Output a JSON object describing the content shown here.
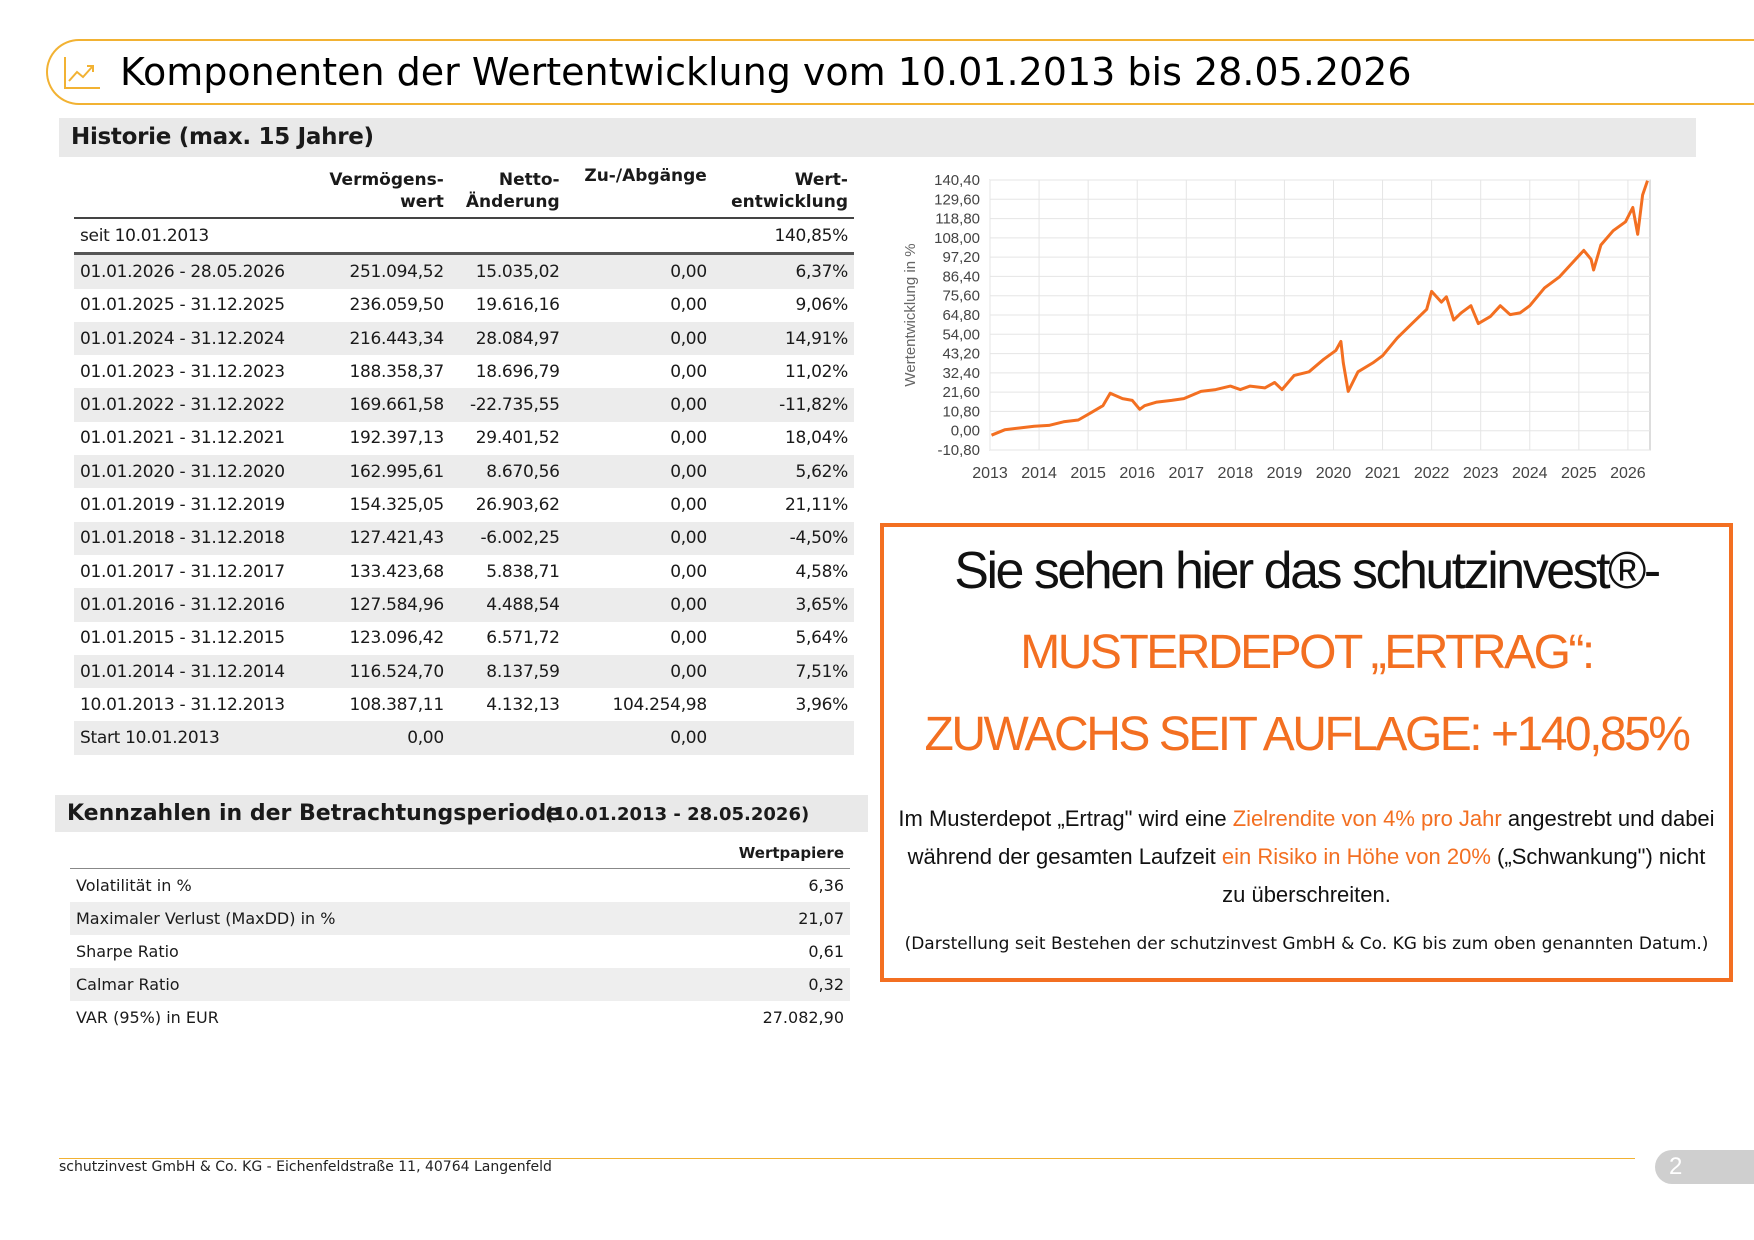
{
  "header": {
    "title": "Komponenten der Wertentwicklung vom 10.01.2013 bis 28.05.2026",
    "icon": "line-chart-icon",
    "accent": "#f2b233"
  },
  "history": {
    "title": "Historie (max. 15 Jahre)",
    "columns": [
      {
        "l1": "",
        "l2": ""
      },
      {
        "l1": "Vermögens-",
        "l2": "wert"
      },
      {
        "l1": "Netto-",
        "l2": "Änderung"
      },
      {
        "l1": "Zu-/Abgänge",
        "l2": ""
      },
      {
        "l1": "Wert-",
        "l2": "entwicklung"
      }
    ],
    "since": {
      "label": "seit 10.01.2013",
      "value": "140,85%"
    },
    "rows": [
      [
        "01.01.2026 - 28.05.2026",
        "251.094,52",
        "15.035,02",
        "0,00",
        "6,37%"
      ],
      [
        "01.01.2025 - 31.12.2025",
        "236.059,50",
        "19.616,16",
        "0,00",
        "9,06%"
      ],
      [
        "01.01.2024 - 31.12.2024",
        "216.443,34",
        "28.084,97",
        "0,00",
        "14,91%"
      ],
      [
        "01.01.2023 - 31.12.2023",
        "188.358,37",
        "18.696,79",
        "0,00",
        "11,02%"
      ],
      [
        "01.01.2022 - 31.12.2022",
        "169.661,58",
        "-22.735,55",
        "0,00",
        "-11,82%"
      ],
      [
        "01.01.2021 - 31.12.2021",
        "192.397,13",
        "29.401,52",
        "0,00",
        "18,04%"
      ],
      [
        "01.01.2020 - 31.12.2020",
        "162.995,61",
        "8.670,56",
        "0,00",
        "5,62%"
      ],
      [
        "01.01.2019 - 31.12.2019",
        "154.325,05",
        "26.903,62",
        "0,00",
        "21,11%"
      ],
      [
        "01.01.2018 - 31.12.2018",
        "127.421,43",
        "-6.002,25",
        "0,00",
        "-4,50%"
      ],
      [
        "01.01.2017 - 31.12.2017",
        "133.423,68",
        "5.838,71",
        "0,00",
        "4,58%"
      ],
      [
        "01.01.2016 - 31.12.2016",
        "127.584,96",
        "4.488,54",
        "0,00",
        "3,65%"
      ],
      [
        "01.01.2015 - 31.12.2015",
        "123.096,42",
        "6.571,72",
        "0,00",
        "5,64%"
      ],
      [
        "01.01.2014 - 31.12.2014",
        "116.524,70",
        "8.137,59",
        "0,00",
        "7,51%"
      ],
      [
        "10.01.2013 - 31.12.2013",
        "108.387,11",
        "4.132,13",
        "104.254,98",
        "3,96%"
      ],
      [
        "Start 10.01.2013",
        "0,00",
        "",
        "0,00",
        ""
      ]
    ]
  },
  "kennzahlen": {
    "title": "Kennzahlen in der Betrachtungsperiode",
    "period": "(10.01.2013 - 28.05.2026)",
    "column": "Wertpapiere",
    "rows": [
      [
        "Volatilität in %",
        "6,36"
      ],
      [
        "Maximaler Verlust (MaxDD) in %",
        "21,07"
      ],
      [
        "Sharpe Ratio",
        "0,61"
      ],
      [
        "Calmar Ratio",
        "0,32"
      ],
      [
        "VAR (95%) in EUR",
        "27.082,90"
      ]
    ]
  },
  "promo": {
    "line1": "Sie sehen hier das schutzinvest®-",
    "line2": "MUSTERDEPOT „ERTRAG“:",
    "line3": "ZUWACHS SEIT AUFLAGE: +140,85%",
    "b1": "Im Musterdepot „Ertrag\" wird eine ",
    "b2": "Zielrendite von 4% pro Jahr",
    "b3": " angestrebt und dabei während der gesamten Laufzeit ",
    "b4": "ein Risiko in Höhe von 20%",
    "b5": " („Schwankung\") nicht zu überschreiten.",
    "note": "(Darstellung seit Bestehen der schutzinvest GmbH & Co. KG bis zum oben genannten Datum.)",
    "accent": "#f36f21"
  },
  "footer": {
    "address": "schutzinvest GmbH & Co. KG - Eichenfeldstraße 11, 40764 Langenfeld",
    "page": "2"
  },
  "chart_data": {
    "type": "line",
    "title": "",
    "xlabel": "",
    "ylabel": "Wertentwicklung in %",
    "ylim": [
      -10.8,
      140.4
    ],
    "xlim": [
      2013,
      2026.45
    ],
    "x_ticks": [
      "2013",
      "2014",
      "2015",
      "2016",
      "2017",
      "2018",
      "2019",
      "2020",
      "2021",
      "2022",
      "2023",
      "2024",
      "2025",
      "2026"
    ],
    "y_ticks": [
      "140,40",
      "129,60",
      "118,80",
      "108,00",
      "97,20",
      "86,40",
      "75,60",
      "64,80",
      "54,00",
      "43,20",
      "32,40",
      "21,60",
      "10,80",
      "0,00",
      "-10,80"
    ],
    "grid": true,
    "color": "#f36f21",
    "series": [
      {
        "x": [
          2013.03,
          2013.3,
          2013.6,
          2013.9,
          2014.2,
          2014.5,
          2014.8,
          2015.05,
          2015.3,
          2015.45,
          2015.7,
          2015.9,
          2016.05,
          2016.15,
          2016.4,
          2016.7,
          2016.95,
          2017.3,
          2017.6,
          2017.9,
          2018.1,
          2018.3,
          2018.6,
          2018.8,
          2018.95,
          2019.2,
          2019.5,
          2019.8,
          2020.05,
          2020.15,
          2020.2,
          2020.3,
          2020.5,
          2020.8,
          2021.0,
          2021.3,
          2021.6,
          2021.9,
          2022.0,
          2022.2,
          2022.3,
          2022.45,
          2022.6,
          2022.8,
          2022.95,
          2023.2,
          2023.4,
          2023.6,
          2023.8,
          2024.0,
          2024.3,
          2024.6,
          2024.9,
          2025.1,
          2025.25,
          2025.3,
          2025.45,
          2025.7,
          2025.95,
          2026.1,
          2026.2,
          2026.3,
          2026.4
        ],
        "y": [
          -2.5,
          0.5,
          1.5,
          2.5,
          3,
          5,
          6,
          10,
          14,
          21,
          18,
          17,
          12,
          14,
          16,
          17,
          18,
          22,
          23,
          25,
          23,
          25,
          24,
          27,
          23,
          31,
          33,
          40,
          45,
          50,
          38,
          22,
          33,
          38,
          42,
          52,
          60,
          68,
          78,
          72,
          75,
          62,
          66,
          70,
          60,
          64,
          70,
          65,
          66,
          70,
          80,
          86,
          95,
          101,
          96,
          90,
          104,
          112,
          117,
          125,
          110,
          132,
          140
        ]
      }
    ]
  }
}
